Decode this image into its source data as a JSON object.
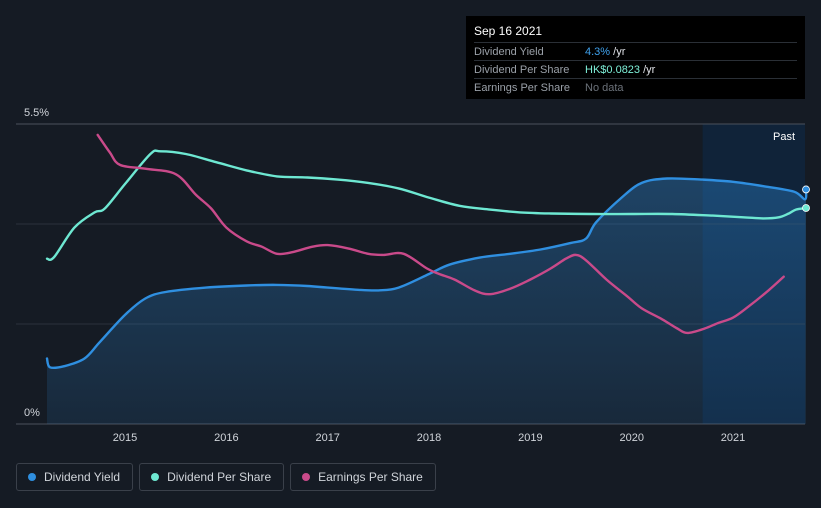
{
  "tooltip": {
    "date": "Sep 16 2021",
    "rows": [
      {
        "label": "Dividend Yield",
        "value": "4.3%",
        "unit": " /yr"
      },
      {
        "label": "Dividend Per Share",
        "value": "HK$0.0823",
        "unit": " /yr"
      },
      {
        "label": "Earnings Per Share",
        "value": "No data",
        "unit": ""
      }
    ]
  },
  "y_axis": {
    "top_label": "5.5%",
    "bottom_label": "0%"
  },
  "past_label": "Past",
  "legend": [
    {
      "label": "Dividend Yield",
      "color": "#2f8fe0"
    },
    {
      "label": "Dividend Per Share",
      "color": "#6ee8d2"
    },
    {
      "label": "Earnings Per Share",
      "color": "#c94a8a"
    }
  ],
  "colors": {
    "yield": "#2f8fe0",
    "dps": "#6ee8d2",
    "eps": "#c94a8a",
    "background": "#151b24",
    "forecast_shade": "#0d2a4a"
  },
  "chart_data": {
    "type": "line",
    "x_ticks": [
      "2015",
      "2016",
      "2017",
      "2018",
      "2019",
      "2020",
      "2021"
    ],
    "x_range": [
      2014.23,
      2021.71
    ],
    "y_range_yield_pct": [
      0,
      5.5
    ],
    "grid": "horizontal",
    "past_start": 2020.7,
    "series": [
      {
        "name": "Dividend Yield",
        "key": "yield",
        "unit": "%",
        "area": true,
        "points": [
          [
            2014.23,
            1.2
          ],
          [
            2014.26,
            1.04
          ],
          [
            2014.4,
            1.06
          ],
          [
            2014.6,
            1.2
          ],
          [
            2014.75,
            1.5
          ],
          [
            2015.0,
            2.0
          ],
          [
            2015.2,
            2.3
          ],
          [
            2015.4,
            2.42
          ],
          [
            2015.8,
            2.5
          ],
          [
            2016.2,
            2.54
          ],
          [
            2016.5,
            2.55
          ],
          [
            2016.8,
            2.53
          ],
          [
            2017.0,
            2.5
          ],
          [
            2017.3,
            2.46
          ],
          [
            2017.5,
            2.45
          ],
          [
            2017.7,
            2.5
          ],
          [
            2018.0,
            2.75
          ],
          [
            2018.2,
            2.92
          ],
          [
            2018.5,
            3.05
          ],
          [
            2018.8,
            3.12
          ],
          [
            2019.1,
            3.2
          ],
          [
            2019.4,
            3.32
          ],
          [
            2019.55,
            3.4
          ],
          [
            2019.65,
            3.7
          ],
          [
            2019.9,
            4.15
          ],
          [
            2020.1,
            4.42
          ],
          [
            2020.35,
            4.5
          ],
          [
            2020.7,
            4.48
          ],
          [
            2021.0,
            4.44
          ],
          [
            2021.3,
            4.36
          ],
          [
            2021.6,
            4.26
          ],
          [
            2021.71,
            4.12
          ],
          [
            2021.72,
            4.3
          ]
        ]
      },
      {
        "name": "Dividend Per Share",
        "key": "dps",
        "unit": "HK$",
        "area": false,
        "points": [
          [
            2014.23,
            3.03
          ],
          [
            2014.3,
            3.06
          ],
          [
            2014.5,
            3.6
          ],
          [
            2014.7,
            3.88
          ],
          [
            2014.8,
            3.95
          ],
          [
            2015.0,
            4.4
          ],
          [
            2015.25,
            4.95
          ],
          [
            2015.35,
            5.0
          ],
          [
            2015.6,
            4.95
          ],
          [
            2015.9,
            4.8
          ],
          [
            2016.2,
            4.65
          ],
          [
            2016.5,
            4.54
          ],
          [
            2016.8,
            4.52
          ],
          [
            2017.1,
            4.48
          ],
          [
            2017.4,
            4.42
          ],
          [
            2017.7,
            4.32
          ],
          [
            2018.0,
            4.15
          ],
          [
            2018.3,
            4.0
          ],
          [
            2018.6,
            3.93
          ],
          [
            2018.9,
            3.88
          ],
          [
            2019.2,
            3.86
          ],
          [
            2019.6,
            3.85
          ],
          [
            2020.0,
            3.85
          ],
          [
            2020.4,
            3.85
          ],
          [
            2020.8,
            3.82
          ],
          [
            2021.1,
            3.79
          ],
          [
            2021.3,
            3.77
          ],
          [
            2021.45,
            3.79
          ],
          [
            2021.55,
            3.86
          ],
          [
            2021.62,
            3.93
          ],
          [
            2021.72,
            3.96
          ]
        ]
      },
      {
        "name": "Earnings Per Share",
        "key": "eps",
        "unit": "HK$",
        "area": false,
        "points": [
          [
            2014.73,
            5.3
          ],
          [
            2014.85,
            4.98
          ],
          [
            2014.95,
            4.75
          ],
          [
            2015.2,
            4.68
          ],
          [
            2015.5,
            4.58
          ],
          [
            2015.7,
            4.2
          ],
          [
            2015.85,
            3.95
          ],
          [
            2016.0,
            3.6
          ],
          [
            2016.2,
            3.35
          ],
          [
            2016.35,
            3.25
          ],
          [
            2016.5,
            3.12
          ],
          [
            2016.65,
            3.15
          ],
          [
            2016.85,
            3.25
          ],
          [
            2017.0,
            3.28
          ],
          [
            2017.2,
            3.22
          ],
          [
            2017.4,
            3.12
          ],
          [
            2017.55,
            3.1
          ],
          [
            2017.75,
            3.12
          ],
          [
            2017.98,
            2.85
          ],
          [
            2018.1,
            2.75
          ],
          [
            2018.25,
            2.65
          ],
          [
            2018.45,
            2.45
          ],
          [
            2018.6,
            2.38
          ],
          [
            2018.8,
            2.48
          ],
          [
            2019.0,
            2.65
          ],
          [
            2019.2,
            2.85
          ],
          [
            2019.35,
            3.03
          ],
          [
            2019.45,
            3.1
          ],
          [
            2019.55,
            3.0
          ],
          [
            2019.75,
            2.65
          ],
          [
            2019.95,
            2.35
          ],
          [
            2020.1,
            2.12
          ],
          [
            2020.3,
            1.92
          ],
          [
            2020.45,
            1.75
          ],
          [
            2020.55,
            1.67
          ],
          [
            2020.72,
            1.75
          ],
          [
            2020.85,
            1.85
          ],
          [
            2021.0,
            1.95
          ],
          [
            2021.15,
            2.15
          ],
          [
            2021.35,
            2.45
          ],
          [
            2021.5,
            2.7
          ]
        ]
      }
    ]
  }
}
